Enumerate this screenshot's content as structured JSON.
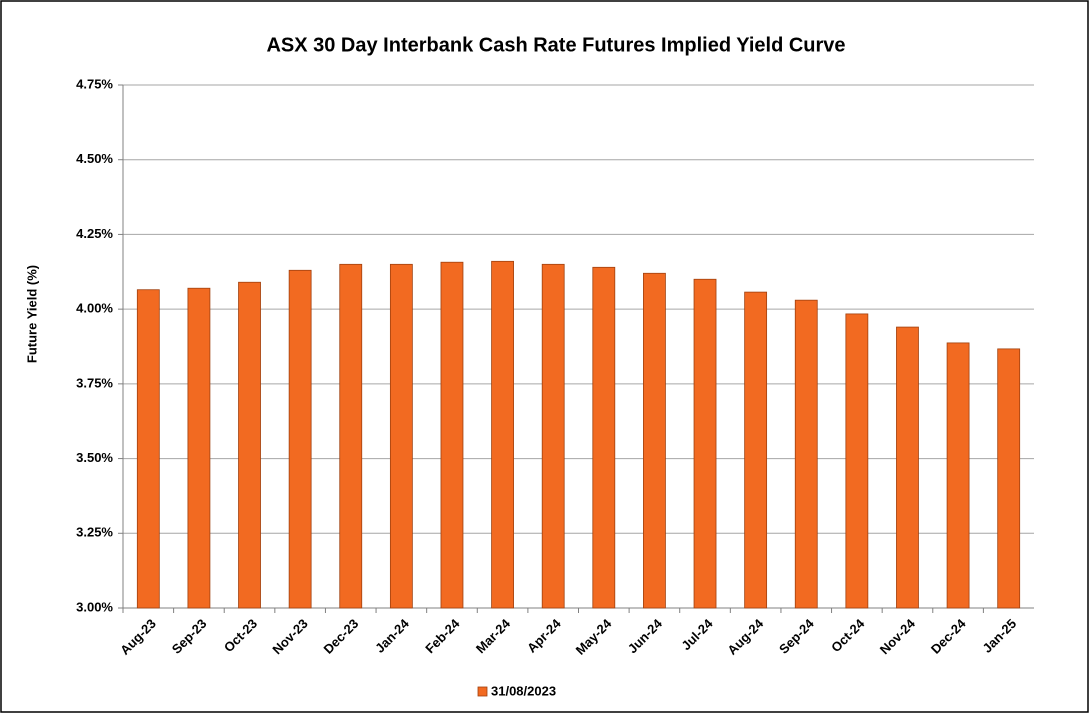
{
  "chart_data": {
    "type": "bar",
    "title": "ASX 30 Day Interbank Cash Rate Futures Implied Yield Curve",
    "y_label": "Future Yield (%)",
    "categories": [
      "Aug-23",
      "Sep-23",
      "Oct-23",
      "Nov-23",
      "Dec-23",
      "Jan-24",
      "Feb-24",
      "Mar-24",
      "Apr-24",
      "May-24",
      "Jun-24",
      "Jul-24",
      "Aug-24",
      "Sep-24",
      "Oct-24",
      "Nov-24",
      "Dec-24",
      "Jan-25"
    ],
    "series": [
      {
        "name": "31/08/2023",
        "color": "#f26a21",
        "values": [
          4.065,
          4.07,
          4.09,
          4.13,
          4.15,
          4.15,
          4.157,
          4.16,
          4.15,
          4.14,
          4.12,
          4.1,
          4.057,
          4.03,
          3.984,
          3.94,
          3.887,
          3.867
        ]
      }
    ],
    "ylim": [
      3.0,
      4.75
    ],
    "yticks": [
      {
        "value": 3.0,
        "label": "3.00%"
      },
      {
        "value": 3.25,
        "label": "3.25%"
      },
      {
        "value": 3.5,
        "label": "3.50%"
      },
      {
        "value": 3.75,
        "label": "3.75%"
      },
      {
        "value": 4.0,
        "label": "4.00%"
      },
      {
        "value": 4.25,
        "label": "4.25%"
      },
      {
        "value": 4.5,
        "label": "4.50%"
      },
      {
        "value": 4.75,
        "label": "4.75%"
      }
    ],
    "grid": true,
    "legend": "bottom"
  }
}
